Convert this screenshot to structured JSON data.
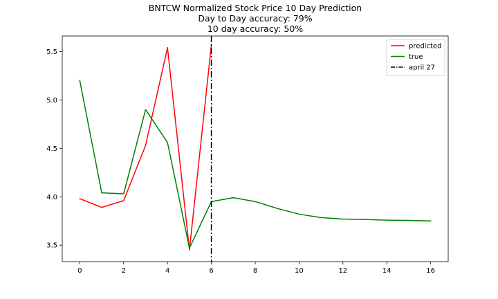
{
  "chart_data": {
    "type": "line",
    "title_lines": [
      "BNTCW Normalized Stock Price 10 Day Prediction",
      "Day to Day accuracy: 79%",
      "10 day accuracy: 50%"
    ],
    "xlabel": "",
    "ylabel": "",
    "xlim": [
      -0.8,
      16.8
    ],
    "ylim": [
      3.33,
      5.66
    ],
    "xticks": [
      0,
      2,
      4,
      6,
      8,
      10,
      12,
      14,
      16
    ],
    "yticks": [
      3.5,
      4.0,
      4.5,
      5.0,
      5.5
    ],
    "ytick_labels": [
      "3.5",
      "4.0",
      "4.5",
      "5.0",
      "5.5"
    ],
    "grid": false,
    "legend_position": "top-right",
    "series": [
      {
        "name": "predicted",
        "color": "#ff0000",
        "x": [
          0,
          1,
          2,
          3,
          4,
          5,
          6
        ],
        "values": [
          3.98,
          3.89,
          3.96,
          4.53,
          5.54,
          3.45,
          5.57
        ]
      },
      {
        "name": "true",
        "color": "#008000",
        "x": [
          0,
          1,
          2,
          3,
          4,
          5,
          6,
          7,
          8,
          9,
          10,
          11,
          12,
          13,
          14,
          15,
          16
        ],
        "values": [
          5.2,
          4.04,
          4.03,
          4.9,
          4.56,
          3.47,
          3.95,
          3.99,
          3.95,
          3.88,
          3.82,
          3.785,
          3.77,
          3.765,
          3.758,
          3.755,
          3.75
        ]
      }
    ],
    "vlines": [
      {
        "name": "april 27",
        "x": 6,
        "color": "#000000",
        "style": "dashdot"
      }
    ]
  }
}
